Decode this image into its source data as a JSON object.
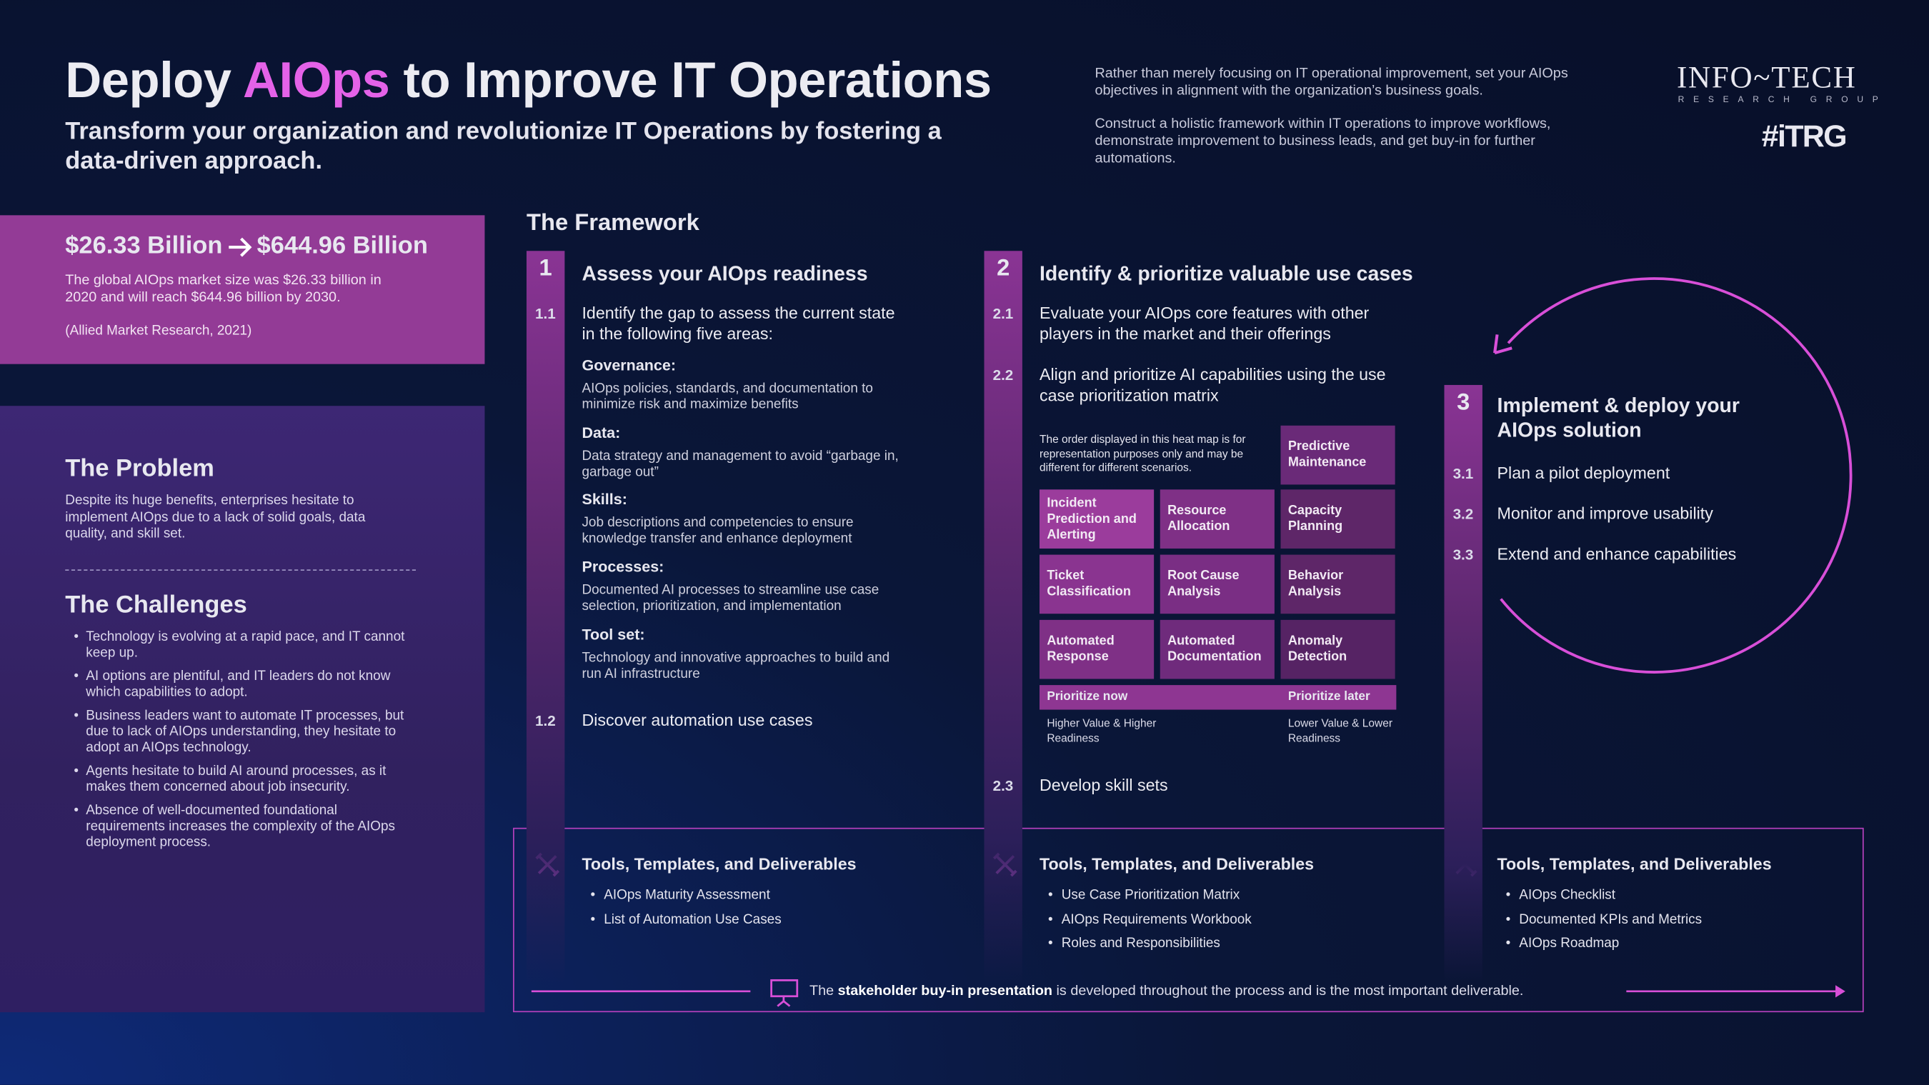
{
  "header": {
    "title_parts": [
      "Deploy ",
      "AIOps",
      " to Improve IT Operations"
    ],
    "subtitle": "Transform your organization and revolutionize IT Operations by fostering a data-driven approach.",
    "intro": [
      "Rather than merely focusing on IT operational improvement, set your AIOps objectives in alignment with the organization’s business goals.",
      "Construct a holistic framework within IT operations to improve workflows, demonstrate improvement to business leads, and get buy-in for further automations."
    ],
    "logo": {
      "name": "Info~Tech",
      "tagline": "RESEARCH GROUP",
      "mark": "#iTRG"
    }
  },
  "stat": {
    "from": "$26.33 Billion",
    "to": "$644.96 Billion",
    "text": "The global AIOps market size was $26.33 billion in 2020 and will reach $644.96 billion by 2030.",
    "source": "(Allied Market Research, 2021)"
  },
  "problem": {
    "heading": "The Problem",
    "text": "Despite its huge benefits, enterprises hesitate to implement AIOps due to a lack of solid goals, data quality, and skill set."
  },
  "challenges": {
    "heading": "The Challenges",
    "items": [
      "Technology is evolving at a rapid pace, and IT cannot keep up.",
      "AI options are plentiful, and IT leaders do not know which capabilities to adopt.",
      "Business leaders want to automate IT processes, but due to lack of AIOps understanding, they hesitate to adopt an AIOps technology.",
      "Agents hesitate to build AI around processes, as it makes them concerned about job insecurity.",
      "Absence of well-documented foundational requirements increases the complexity of the AIOps deployment process."
    ]
  },
  "framework": {
    "heading": "The Framework",
    "phases": [
      {
        "number": "1",
        "title": "Assess your AIOps readiness",
        "steps": [
          {
            "number": "1.1",
            "text": "Identify the gap to assess the current state in the following five areas:",
            "areas": [
              {
                "label": "Governance:",
                "text": "AIOps policies, standards, and documentation to minimize risk and maximize benefits"
              },
              {
                "label": "Data:",
                "text": "Data strategy and management to avoid “garbage in, garbage out”"
              },
              {
                "label": "Skills:",
                "text": "Job descriptions and competencies to ensure knowledge transfer and enhance deployment"
              },
              {
                "label": "Processes:",
                "text": "Documented AI processes to streamline use case selection, prioritization, and implementation"
              },
              {
                "label": "Tool set:",
                "text": "Technology and innovative approaches to build and run AI infrastructure"
              }
            ]
          },
          {
            "number": "1.2",
            "text": "Discover automation use cases"
          }
        ],
        "tools": {
          "heading": "Tools, Templates, and Deliverables",
          "items": [
            "AIOps Maturity Assessment",
            "List of Automation Use Cases"
          ]
        }
      },
      {
        "number": "2",
        "title": "Identify & prioritize valuable use cases",
        "steps": [
          {
            "number": "2.1",
            "text": "Evaluate your AIOps core features with other players in the market and their offerings"
          },
          {
            "number": "2.2",
            "text": "Align and prioritize AI capabilities using the use case prioritization matrix"
          },
          {
            "number": "2.3",
            "text": "Develop skill sets"
          }
        ],
        "tools": {
          "heading": "Tools, Templates, and Deliverables",
          "items": [
            "Use Case Prioritization Matrix",
            "AIOps Requirements Workbook",
            "Roles and Responsibilities"
          ]
        }
      },
      {
        "number": "3",
        "title": "Implement & deploy your AIOps solution",
        "steps": [
          {
            "number": "3.1",
            "text": "Plan a pilot deployment"
          },
          {
            "number": "3.2",
            "text": "Monitor and improve usability"
          },
          {
            "number": "3.3",
            "text": "Extend and enhance capabilities"
          }
        ],
        "tools": {
          "heading": "Tools, Templates, and Deliverables",
          "items": [
            "AIOps Checklist",
            "Documented KPIs and Metrics",
            "AIOps Roadmap"
          ]
        }
      }
    ]
  },
  "matrix": {
    "note": "The order displayed in this heat map is for representation purposes only and may be different for different scenarios.",
    "cells": [
      "Predictive Maintenance",
      "Incident Prediction and Alerting",
      "Resource Allocation",
      "Capacity Planning",
      "Ticket Classification",
      "Root Cause Analysis",
      "Behavior Analysis",
      "Automated Response",
      "Automated Documentation",
      "Anomaly Detection"
    ],
    "prioritize_now": "Prioritize now",
    "prioritize_later": "Prioritize later",
    "now_note": "Higher Value & Higher Readiness",
    "later_note": "Lower Value & Lower Readiness"
  },
  "footer": {
    "parts": [
      "The ",
      "stakeholder buy-in presentation",
      " is developed throughout the process and is the most important deliverable."
    ]
  }
}
